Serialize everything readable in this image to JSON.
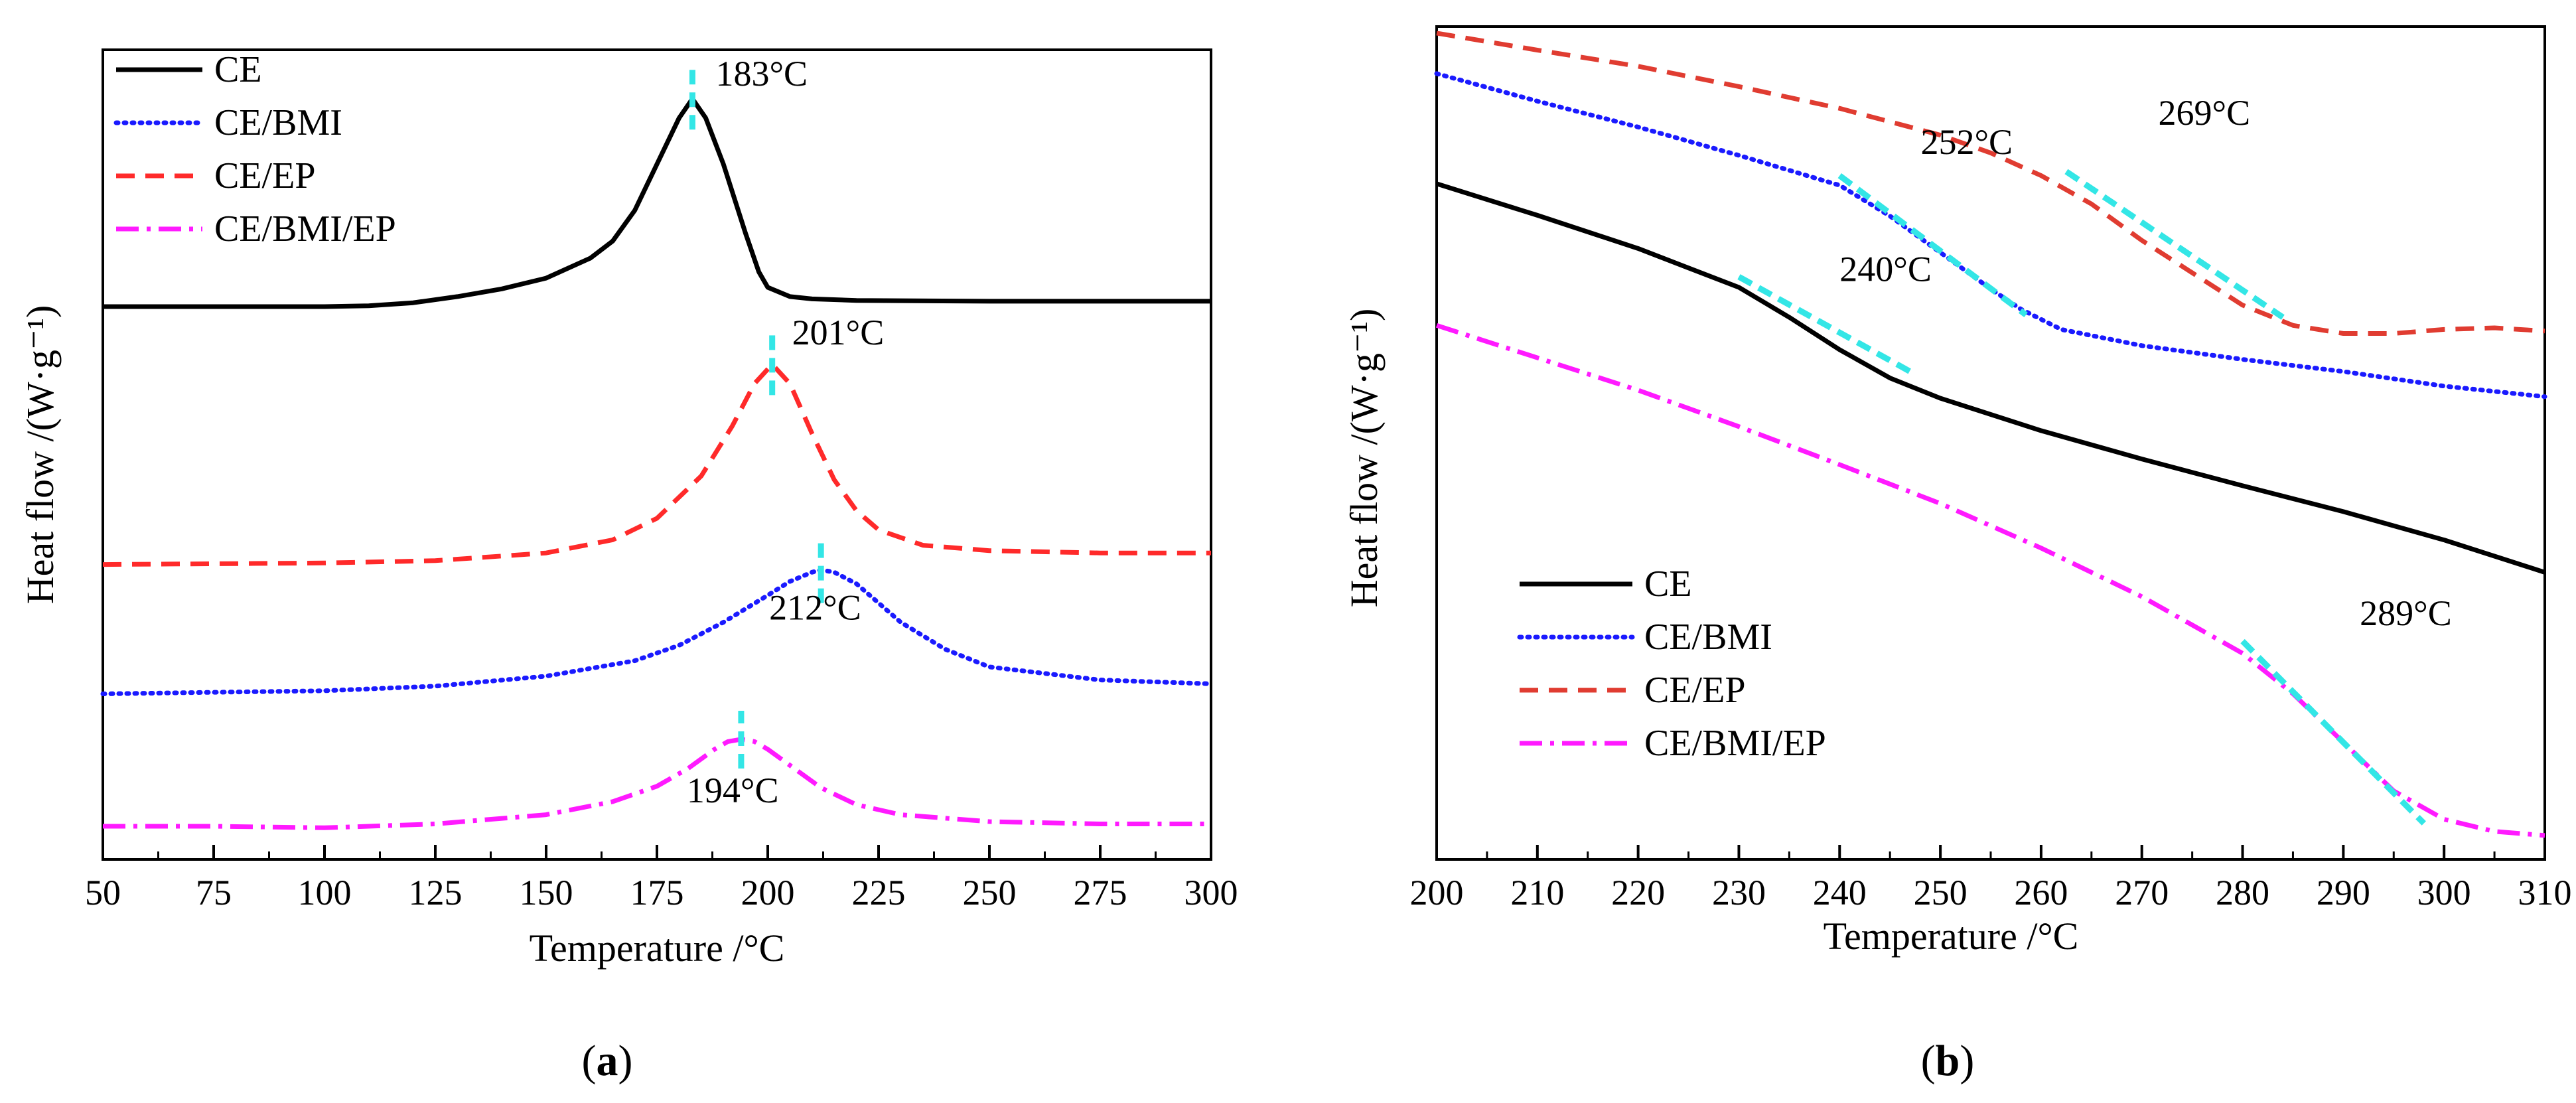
{
  "chart_data": [
    {
      "panel_label": "(a)",
      "type": "line",
      "xlabel": "Temperature /°C",
      "ylabel": "Heat flow /(W·g⁻¹)",
      "xlim": [
        50,
        300
      ],
      "xticks": [
        50,
        75,
        100,
        125,
        150,
        175,
        200,
        225,
        250,
        275,
        300
      ],
      "ylim": [
        0,
        1
      ],
      "yticks_shown": false,
      "legend_position": "top-left",
      "series": [
        {
          "name": "CE",
          "color": "#000000",
          "style": "solid",
          "x": [
            50,
            100,
            110,
            120,
            130,
            140,
            150,
            160,
            165,
            170,
            175,
            180,
            183,
            186,
            190,
            195,
            198,
            200,
            205,
            210,
            220,
            250,
            300
          ],
          "y": [
            0.675,
            0.675,
            0.676,
            0.68,
            0.688,
            0.698,
            0.712,
            0.738,
            0.76,
            0.8,
            0.86,
            0.92,
            0.945,
            0.92,
            0.86,
            0.77,
            0.72,
            0.7,
            0.688,
            0.685,
            0.683,
            0.682,
            0.682
          ]
        },
        {
          "name": "CE/BMI",
          "color": "#1a1aff",
          "style": "dotted",
          "x": [
            50,
            100,
            125,
            150,
            170,
            180,
            190,
            200,
            205,
            210,
            212,
            215,
            220,
            225,
            230,
            240,
            250,
            275,
            300
          ],
          "y": [
            0.172,
            0.176,
            0.182,
            0.195,
            0.215,
            0.235,
            0.265,
            0.3,
            0.318,
            0.33,
            0.333,
            0.33,
            0.315,
            0.29,
            0.265,
            0.23,
            0.207,
            0.19,
            0.185
          ]
        },
        {
          "name": "CE/EP",
          "color": "#ff2a2a",
          "style": "dashed",
          "x": [
            50,
            100,
            125,
            150,
            165,
            175,
            185,
            192,
            197,
            201,
            205,
            210,
            215,
            220,
            225,
            235,
            250,
            275,
            300
          ],
          "y": [
            0.34,
            0.342,
            0.345,
            0.355,
            0.372,
            0.4,
            0.455,
            0.52,
            0.575,
            0.6,
            0.575,
            0.51,
            0.45,
            0.41,
            0.385,
            0.365,
            0.358,
            0.355,
            0.355
          ]
        },
        {
          "name": "CE/BMI/EP",
          "color": "#ff1aff",
          "style": "dash-dot",
          "x": [
            50,
            75,
            100,
            125,
            150,
            165,
            175,
            182,
            188,
            191,
            194,
            197,
            200,
            206,
            212,
            220,
            230,
            250,
            275,
            300
          ],
          "y": [
            0.0,
            0.0,
            -0.002,
            0.003,
            0.015,
            0.032,
            0.052,
            0.075,
            0.1,
            0.11,
            0.113,
            0.11,
            0.1,
            0.075,
            0.05,
            0.028,
            0.015,
            0.006,
            0.003,
            0.003
          ]
        }
      ],
      "annotations": [
        {
          "text": "183°C",
          "x": 183,
          "y": 0.945
        },
        {
          "text": "201°C",
          "x": 201,
          "y": 0.6
        },
        {
          "text": "212°C",
          "x": 212,
          "y": 0.333
        },
        {
          "text": "194°C",
          "x": 194,
          "y": 0.113
        }
      ]
    },
    {
      "panel_label": "(b)",
      "type": "line",
      "xlabel": "Temperature /°C",
      "ylabel": "Heat flow /(W·g⁻¹)",
      "xlim": [
        200,
        310
      ],
      "xticks": [
        200,
        210,
        220,
        230,
        240,
        250,
        260,
        270,
        280,
        290,
        300,
        310
      ],
      "ylim": [
        0,
        1
      ],
      "yticks_shown": false,
      "legend_position": "bottom-left",
      "series": [
        {
          "name": "CE",
          "color": "#000000",
          "style": "solid",
          "x": [
            200,
            210,
            220,
            230,
            235,
            240,
            245,
            250,
            260,
            270,
            280,
            290,
            300,
            310
          ],
          "y": [
            0.81,
            0.771,
            0.73,
            0.682,
            0.645,
            0.605,
            0.57,
            0.545,
            0.505,
            0.47,
            0.437,
            0.405,
            0.37,
            0.33
          ]
        },
        {
          "name": "CE/BMI",
          "color": "#1a1aff",
          "style": "dotted",
          "x": [
            200,
            210,
            220,
            230,
            240,
            245,
            250,
            255,
            258,
            262,
            270,
            280,
            290,
            300,
            310
          ],
          "y": [
            0.946,
            0.912,
            0.88,
            0.845,
            0.808,
            0.77,
            0.725,
            0.68,
            0.655,
            0.63,
            0.61,
            0.593,
            0.578,
            0.56,
            0.547
          ]
        },
        {
          "name": "CE/EP",
          "color": "#e03c31",
          "style": "dashed",
          "x": [
            200,
            210,
            220,
            230,
            240,
            250,
            255,
            260,
            265,
            270,
            275,
            280,
            285,
            290,
            295,
            300,
            305,
            310
          ],
          "y": [
            0.996,
            0.975,
            0.955,
            0.93,
            0.903,
            0.87,
            0.848,
            0.82,
            0.785,
            0.74,
            0.7,
            0.66,
            0.635,
            0.625,
            0.625,
            0.63,
            0.632,
            0.628
          ]
        },
        {
          "name": "CE/BMI/EP",
          "color": "#ff1aff",
          "style": "dash-dot",
          "x": [
            200,
            210,
            220,
            230,
            240,
            250,
            260,
            270,
            275,
            280,
            285,
            290,
            295,
            300,
            305,
            310
          ],
          "y": [
            0.635,
            0.595,
            0.555,
            0.51,
            0.463,
            0.415,
            0.36,
            0.3,
            0.265,
            0.23,
            0.18,
            0.12,
            0.06,
            0.025,
            0.01,
            0.005
          ]
        }
      ],
      "annotations": [
        {
          "text": "240°C",
          "x": 240,
          "y": 0.62
        },
        {
          "text": "252°C",
          "x": 252,
          "y": 0.74
        },
        {
          "text": "269°C",
          "x": 269,
          "y": 0.76
        },
        {
          "text": "289°C",
          "x": 289,
          "y": 0.15
        }
      ]
    }
  ],
  "style": {
    "marker_color": "#33e6e6",
    "axis_color": "#000000",
    "background": "#ffffff"
  }
}
